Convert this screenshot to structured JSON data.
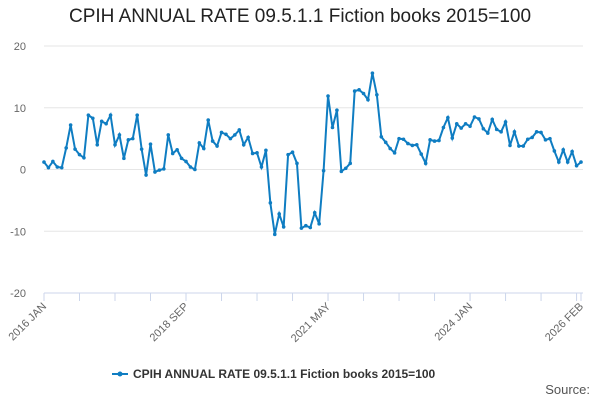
{
  "chart_data": {
    "type": "line",
    "title": "CPIH ANNUAL RATE 09.5.1.1 Fiction books 2015=100",
    "xlabel": "",
    "ylabel": "",
    "ylim": [
      -20,
      20
    ],
    "yticks": [
      20,
      10,
      0,
      -10,
      -20
    ],
    "x_start": "2016 JAN",
    "x_end": "2026 FEB",
    "frequency": "monthly",
    "xticks": [
      {
        "label": "2016 JAN",
        "index": 0
      },
      {
        "label": "2018 SEP",
        "index": 32
      },
      {
        "label": "2021 MAY",
        "index": 64
      },
      {
        "label": "2024 JAN",
        "index": 96
      },
      {
        "label": "2026 FEB",
        "index": 121
      }
    ],
    "grid": true,
    "legend_position": "bottom",
    "series": [
      {
        "name": "CPIH ANNUAL RATE 09.5.1.1 Fiction books 2015=100",
        "color": "#0f7dc2",
        "values": [
          1.2,
          0.3,
          1.3,
          0.4,
          0.3,
          3.5,
          7.2,
          3.3,
          2.4,
          1.9,
          8.8,
          8.3,
          4.0,
          7.8,
          7.4,
          8.8,
          4.0,
          5.6,
          1.8,
          4.8,
          5.0,
          8.8,
          3.3,
          -0.9,
          4.1,
          -0.4,
          -0.1,
          0.1,
          5.6,
          2.6,
          3.2,
          1.8,
          1.3,
          0.4,
          0.0,
          4.3,
          3.4,
          8.0,
          4.6,
          3.8,
          6.0,
          5.7,
          5.0,
          5.6,
          6.4,
          4.0,
          5.2,
          2.6,
          2.7,
          0.4,
          3.1,
          -5.4,
          -10.5,
          -7.2,
          -9.3,
          2.4,
          2.8,
          1.0,
          -9.5,
          -9.1,
          -9.4,
          -7.0,
          -8.8,
          -0.2,
          11.9,
          6.8,
          9.6,
          -0.3,
          0.2,
          1.0,
          12.7,
          12.9,
          12.3,
          11.3,
          15.6,
          12.1,
          5.3,
          4.4,
          3.4,
          2.7,
          5.0,
          4.9,
          4.2,
          3.9,
          4.0,
          2.5,
          1.0,
          4.8,
          4.6,
          4.7,
          6.8,
          8.4,
          5.1,
          7.4,
          6.7,
          7.4,
          7.0,
          8.5,
          8.2,
          6.6,
          5.9,
          8.1,
          6.5,
          6.1,
          7.7,
          3.9,
          6.1,
          3.8,
          3.8,
          4.9,
          5.2,
          6.1,
          6.0,
          4.8,
          5.0,
          3.0,
          1.2,
          3.2,
          1.2,
          2.9,
          0.6,
          1.2
        ]
      }
    ]
  },
  "source_label": "Source:"
}
